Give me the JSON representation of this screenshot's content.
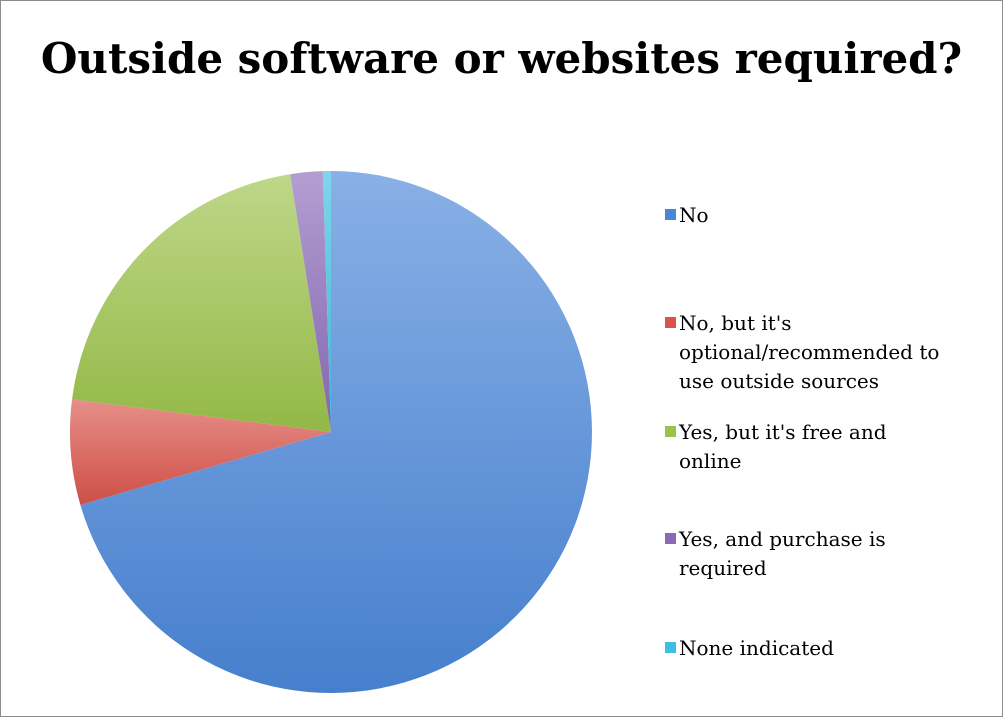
{
  "chart_data": {
    "type": "pie",
    "title": "Outside software or websites required?",
    "legend_position": "right",
    "series": [
      {
        "categories": [
          "No",
          "No, but it's optional/recommended to use outside sources",
          "Yes, but it's free and online",
          "Yes, and purchase is required",
          "None indicated"
        ],
        "values": [
          70.5,
          6.5,
          20.5,
          2.0,
          0.5
        ],
        "colors": [
          "#4a86d8",
          "#d9534a",
          "#9bc24a",
          "#8a6ab8",
          "#3cbfe0"
        ]
      }
    ]
  },
  "legend": {
    "items": [
      {
        "label": "No",
        "color": "#4a86d8"
      },
      {
        "label": "No, but it's\noptional/recommended to\nuse outside sources",
        "color": "#d9534a"
      },
      {
        "label": "Yes, but it's free and\nonline",
        "color": "#9bc24a"
      },
      {
        "label": "Yes, and purchase is\nrequired",
        "color": "#8a6ab8"
      },
      {
        "label": "None indicated",
        "color": "#3cbfe0"
      }
    ]
  }
}
